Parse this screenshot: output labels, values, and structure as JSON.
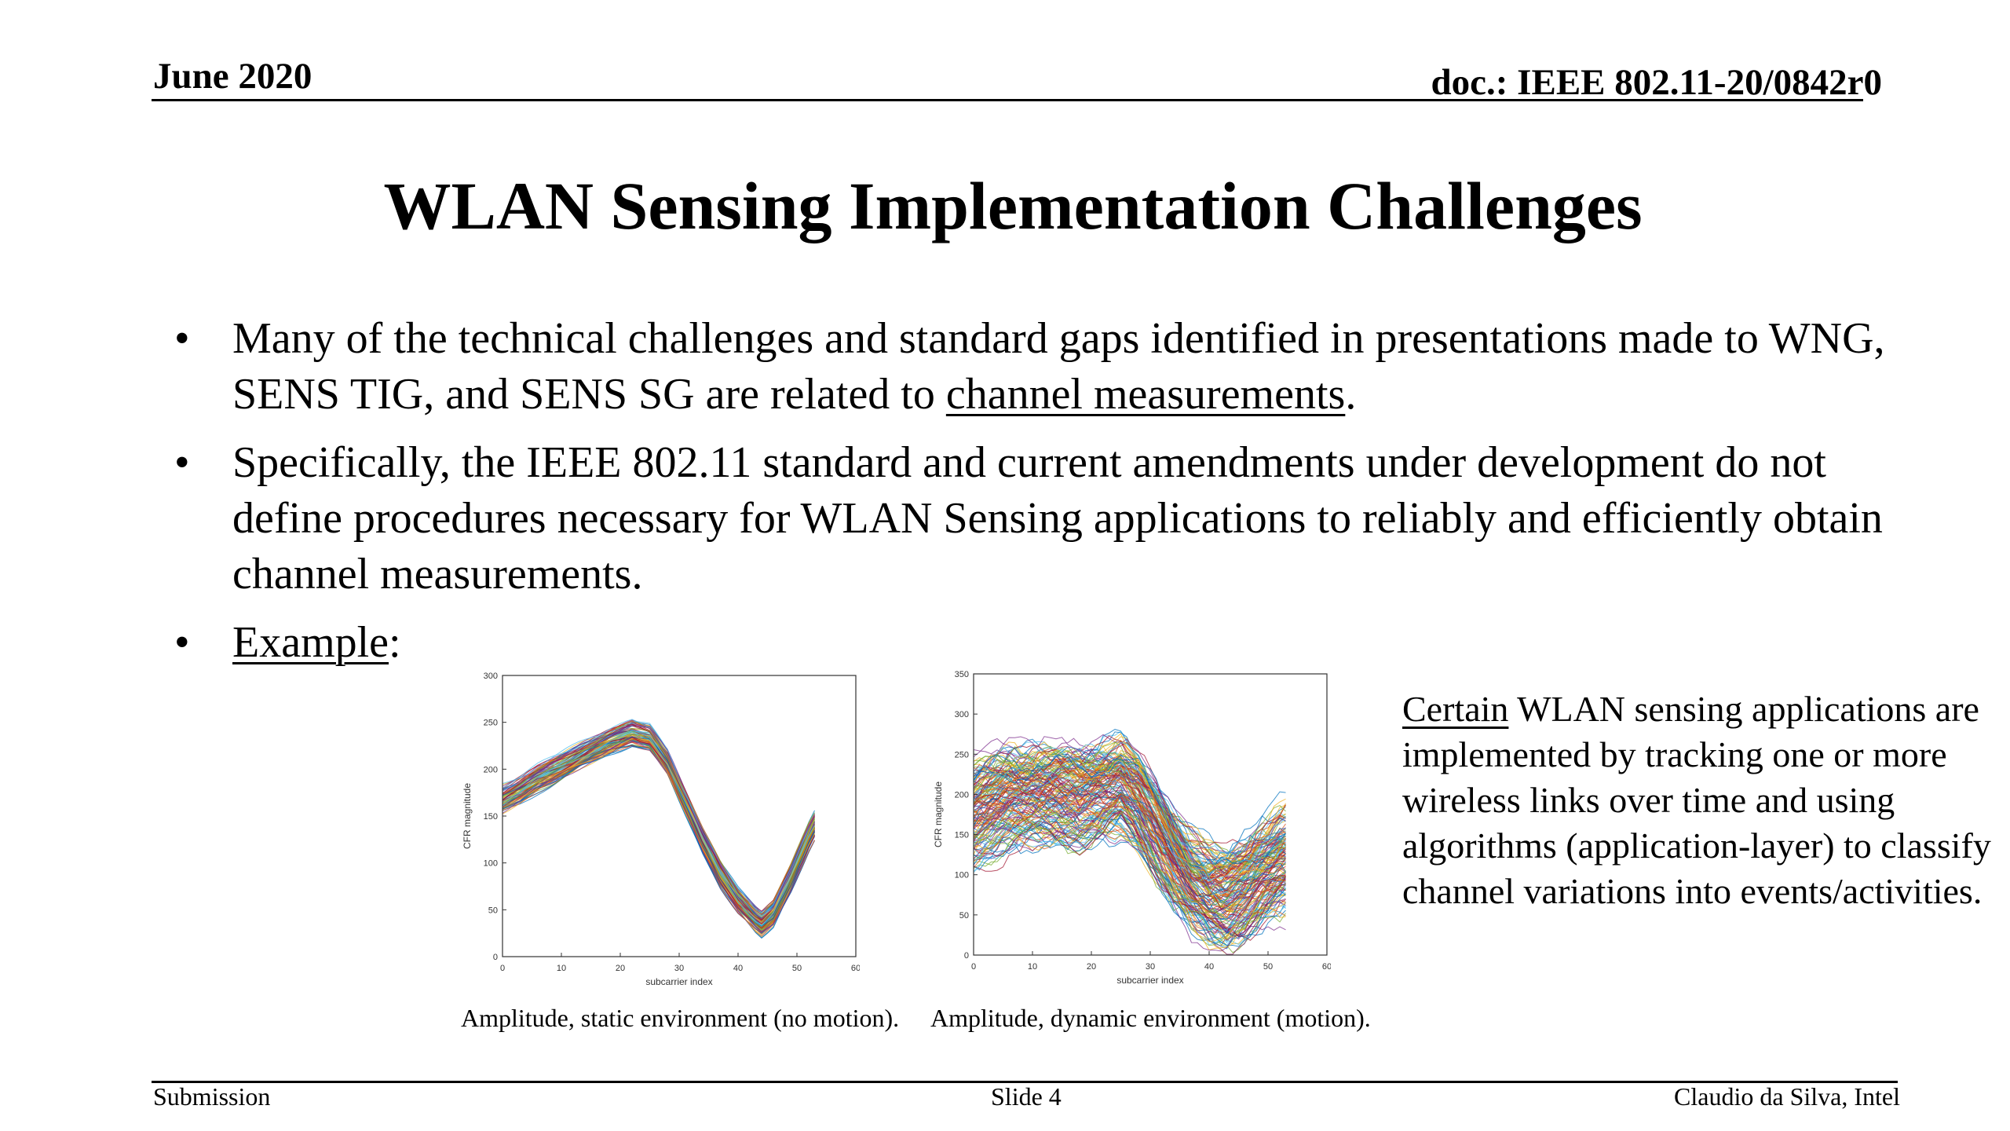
{
  "header": {
    "date": "June 2020",
    "doc_id": "doc.: IEEE 802.11-20/0842r0"
  },
  "slide": {
    "title": "WLAN Sensing Implementation Challenges",
    "bullets": [
      {
        "pre": "Many of the technical challenges and standard gaps identified in presentations made to WNG, SENS TIG, and SENS SG are related to ",
        "link": "channel measurements",
        "post": "."
      },
      {
        "pre": "Specifically, the IEEE 802.11 standard and current amendments under development do not define procedures necessary for WLAN Sensing applications to reliably and efficiently obtain channel measurements.",
        "link": "",
        "post": ""
      },
      {
        "pre": "",
        "link": "Example",
        "post": ":"
      }
    ],
    "bullet_symbol": "•",
    "sidenote": {
      "underlined": "Certain",
      "rest": " WLAN sensing applications are implemented by tracking one or more wireless links over time and using algorithms (application-layer) to classify channel variations into events/activities."
    }
  },
  "footer": {
    "left": "Submission",
    "center": "Slide 4",
    "right": "Claudio da Silva, Intel"
  },
  "chart_data": [
    {
      "type": "line",
      "caption": "Amplitude, static environment (no motion).",
      "xlabel": "subcarrier index",
      "ylabel": "CFR magnitude",
      "xlim": [
        0,
        60
      ],
      "ylim": [
        0,
        300
      ],
      "xticks": [
        0,
        10,
        20,
        30,
        40,
        50,
        60
      ],
      "yticks": [
        0,
        50,
        100,
        150,
        200,
        250,
        300
      ],
      "grid": false,
      "series_count_note": "many overlapping measurement traces",
      "mean_curve": {
        "x": [
          0,
          3,
          6,
          10,
          14,
          18,
          22,
          25,
          28,
          31,
          34,
          37,
          40,
          43,
          44,
          46,
          49,
          52,
          53
        ],
        "y": [
          168,
          178,
          190,
          203,
          217,
          229,
          239,
          234,
          208,
          166,
          124,
          88,
          60,
          40,
          35,
          46,
          84,
          128,
          140
        ]
      },
      "spread": 12
    },
    {
      "type": "line",
      "caption": "Amplitude, dynamic environment (motion).",
      "xlabel": "subcarrier index",
      "ylabel": "CFR magnitude",
      "xlim": [
        0,
        60
      ],
      "ylim": [
        0,
        350
      ],
      "xticks": [
        0,
        10,
        20,
        30,
        40,
        50,
        60
      ],
      "yticks": [
        0,
        50,
        100,
        150,
        200,
        250,
        300,
        350
      ],
      "grid": false,
      "series_count_note": "many overlapping measurement traces",
      "mean_curve": {
        "x": [
          0,
          3,
          6,
          10,
          14,
          18,
          22,
          25,
          28,
          31,
          34,
          37,
          40,
          43,
          46,
          49,
          52,
          53
        ],
        "y": [
          175,
          185,
          196,
          200,
          200,
          195,
          205,
          212,
          190,
          155,
          120,
          92,
          75,
          68,
          80,
          100,
          115,
          118
        ]
      },
      "spread": 55
    }
  ]
}
